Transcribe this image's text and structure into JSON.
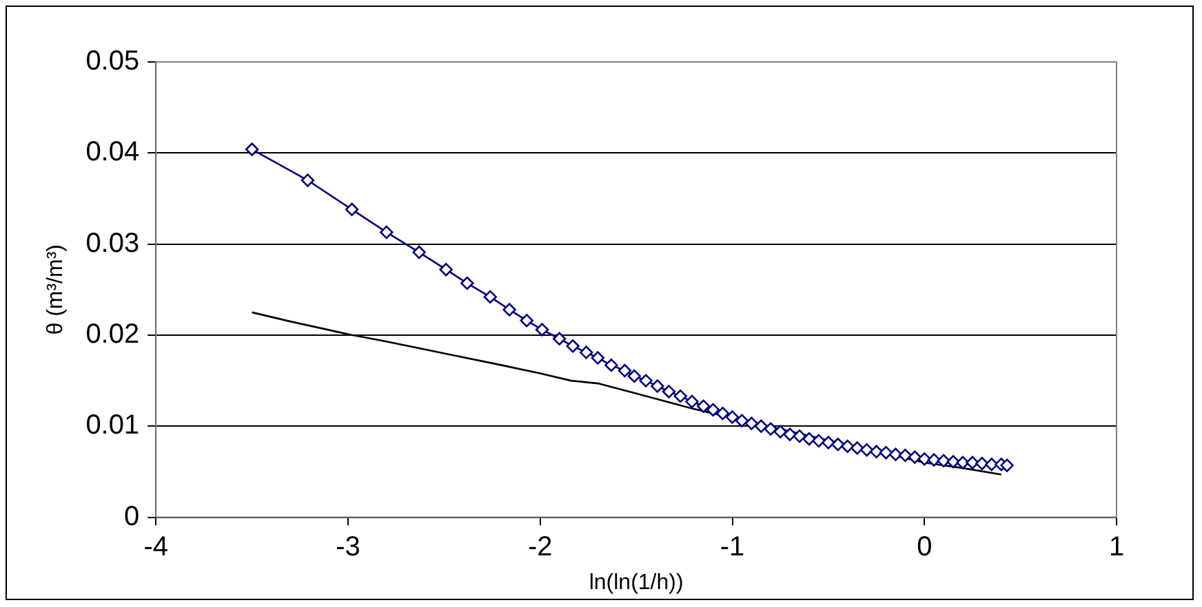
{
  "chart_data": {
    "type": "line",
    "xlabel": "ln(ln(1/h))",
    "ylabel": "θ (m³/m³)",
    "xlim": [
      -4,
      1
    ],
    "xticks": [
      -4,
      -3,
      -2,
      -1,
      0,
      1
    ],
    "ylim": [
      0,
      0.05
    ],
    "yticks": [
      0,
      0.01,
      0.02,
      0.03,
      0.04,
      0.05
    ],
    "grid": "y",
    "legend": false,
    "series": [
      {
        "color": "#000080",
        "marker": "diamond",
        "x": [
          -3.5,
          -3.21,
          -2.98,
          -2.8,
          -2.63,
          -2.49,
          -2.38,
          -2.26,
          -2.16,
          -2.07,
          -1.99,
          -1.9,
          -1.83,
          -1.76,
          -1.7,
          -1.63,
          -1.56,
          -1.51,
          -1.45,
          -1.39,
          -1.33,
          -1.27,
          -1.21,
          -1.15,
          -1.1,
          -1.05,
          -1.0,
          -0.95,
          -0.9,
          -0.85,
          -0.8,
          -0.75,
          -0.7,
          -0.65,
          -0.6,
          -0.55,
          -0.5,
          -0.45,
          -0.4,
          -0.35,
          -0.3,
          -0.25,
          -0.2,
          -0.15,
          -0.1,
          -0.05,
          0.0,
          0.05,
          0.1,
          0.15,
          0.2,
          0.25,
          0.3,
          0.35,
          0.4,
          0.43
        ],
        "values": [
          0.0404,
          0.037,
          0.0338,
          0.0313,
          0.0291,
          0.0272,
          0.0257,
          0.0242,
          0.0228,
          0.0216,
          0.0206,
          0.0196,
          0.0188,
          0.0181,
          0.0175,
          0.0167,
          0.0161,
          0.0155,
          0.015,
          0.0144,
          0.0138,
          0.0133,
          0.0127,
          0.0122,
          0.0118,
          0.0114,
          0.011,
          0.0106,
          0.0103,
          0.01,
          0.0097,
          0.0094,
          0.0091,
          0.0089,
          0.0086,
          0.0084,
          0.0082,
          0.008,
          0.0078,
          0.0076,
          0.0074,
          0.0072,
          0.0071,
          0.0069,
          0.0068,
          0.0066,
          0.0064,
          0.0063,
          0.0062,
          0.0061,
          0.006,
          0.006,
          0.0059,
          0.0058,
          0.0058,
          0.0057
        ]
      },
      {
        "color": "#000000",
        "marker": "none",
        "x": [
          -3.5,
          -3.3,
          -3.0,
          -2.8,
          -2.5,
          -2.2,
          -2.0,
          -1.84,
          -1.7,
          -1.5,
          -1.2,
          0.0,
          0.2,
          0.4
        ],
        "values": [
          0.0225,
          0.0215,
          0.0201,
          0.0193,
          0.018,
          0.0167,
          0.0158,
          0.015,
          0.0147,
          0.0136,
          0.0119,
          0.006,
          0.0054,
          0.0047
        ]
      }
    ]
  }
}
